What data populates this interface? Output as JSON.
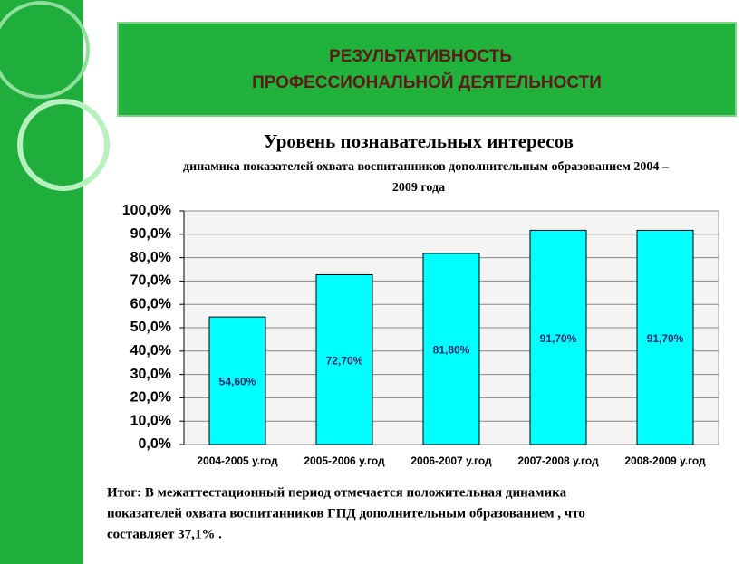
{
  "header": {
    "title": [
      "РЕЗУЛЬТАТИВНОСТЬ",
      "ПРОФЕССИОНАЛЬНОЙ ДЕЯТЕЛЬНОСТИ"
    ]
  },
  "chart_data": {
    "type": "bar",
    "title": "Уровень познавательных интересов",
    "subtitle": [
      "динамика показателей охвата воспитанников дополнительным образованием 2004 –",
      "2009 года"
    ],
    "categories": [
      "2004-2005 у.год",
      "2005-2006 у.год",
      "2006-2007 у.год",
      "2007-2008 у.год",
      "2008-2009 у.год"
    ],
    "values": [
      54.6,
      72.7,
      81.8,
      91.7,
      91.7
    ],
    "value_labels": [
      "54,60%",
      "72,70%",
      "81,80%",
      "91,70%",
      "91,70%"
    ],
    "color": "#00ffff",
    "ylim": [
      0,
      100
    ],
    "yticks": [
      {
        "value": 0,
        "label": "0,0%"
      },
      {
        "value": 10,
        "label": "10,0%"
      },
      {
        "value": 20,
        "label": "20,0%"
      },
      {
        "value": 30,
        "label": "30,0%"
      },
      {
        "value": 40,
        "label": "40,0%"
      },
      {
        "value": 50,
        "label": "50,0%"
      },
      {
        "value": 60,
        "label": "60,0%"
      },
      {
        "value": 70,
        "label": "70,0%"
      },
      {
        "value": 80,
        "label": "80,0%"
      },
      {
        "value": 90,
        "label": "90,0%"
      },
      {
        "value": 100,
        "label": "100,0%"
      }
    ],
    "grid": true
  },
  "footer": [
    "Итог: В межаттестационный период отмечается положительная динамика",
    "показателей охвата воспитанников ГПД дополнительным образованием , что",
    "составляет 37,1% ."
  ]
}
